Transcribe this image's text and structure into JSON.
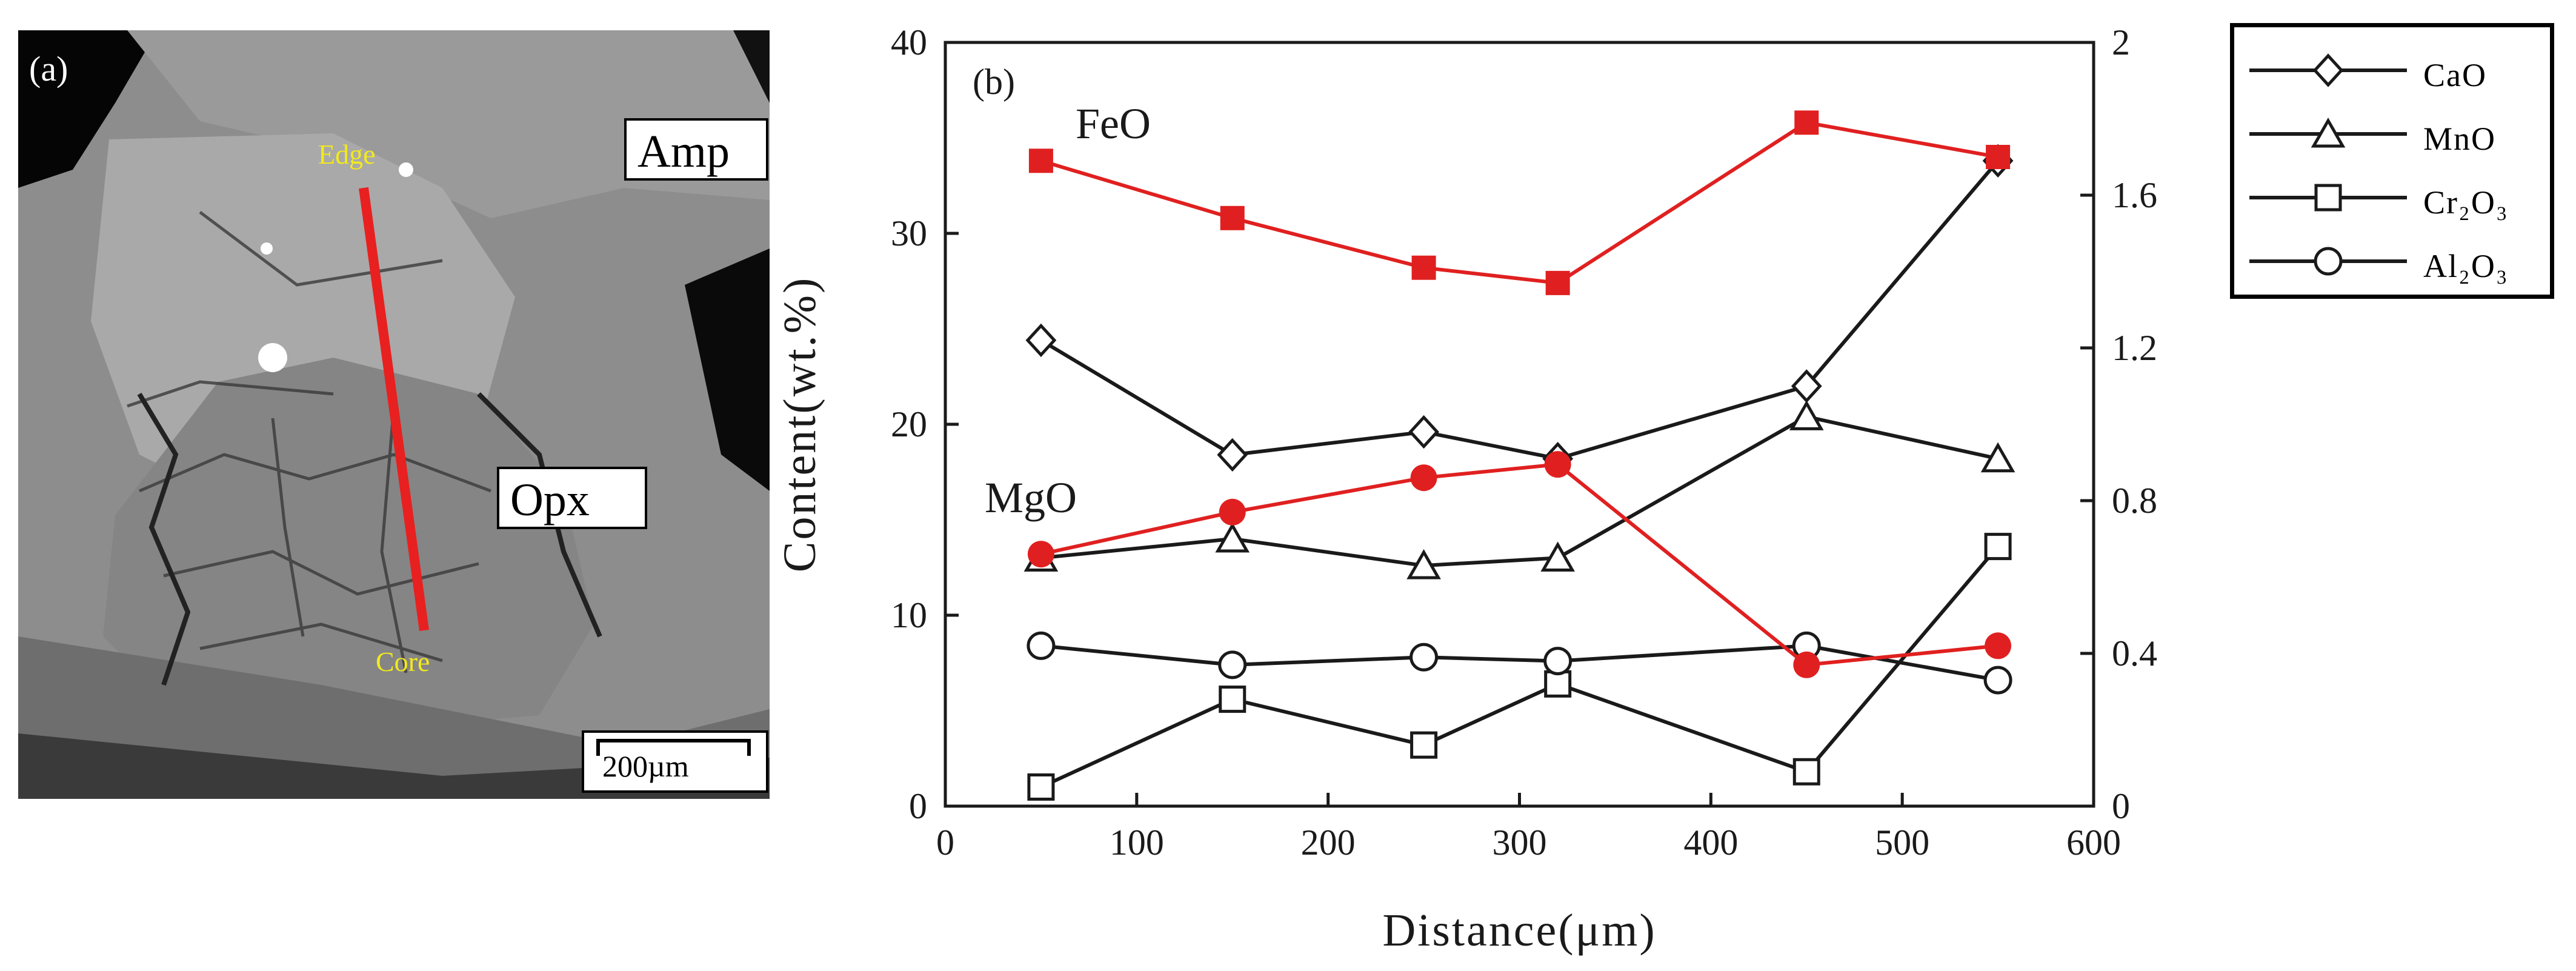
{
  "panel_a": {
    "panel_label": "(a)",
    "mineral_amp": "Amp",
    "mineral_opx": "Opx",
    "edge_label": "Edge",
    "core_label": "Core",
    "scale_bar": "200µm"
  },
  "colors": {
    "red": "#e02020",
    "black": "#1a1a1a"
  },
  "chart_data": {
    "type": "line",
    "panel_label": "(b)",
    "xlabel": "Distance(μm)",
    "ylabel": "Content(wt.%)",
    "xlim": [
      0,
      600
    ],
    "ylim_left": [
      0,
      40
    ],
    "ylim_right": [
      0,
      2
    ],
    "x_ticks": [
      "0",
      "100",
      "200",
      "300",
      "400",
      "500",
      "600"
    ],
    "y_left_ticks": [
      "0",
      "10",
      "20",
      "30",
      "40"
    ],
    "y_right_ticks": [
      "0",
      "0.4",
      "0.8",
      "1.2",
      "1.6",
      "2"
    ],
    "x": [
      50,
      150,
      250,
      320,
      450,
      550
    ],
    "series": [
      {
        "name": "FeO",
        "axis": "left",
        "marker": "filled-square",
        "color": "#e02020",
        "values": [
          33.8,
          30.8,
          28.2,
          27.4,
          35.8,
          34.0
        ]
      },
      {
        "name": "MgO",
        "axis": "left",
        "marker": "filled-circle",
        "color": "#e02020",
        "values": [
          13.2,
          15.4,
          17.2,
          17.9,
          7.4,
          8.4
        ]
      },
      {
        "name": "CaO",
        "axis": "right",
        "marker": "open-diamond",
        "color": "#1a1a1a",
        "values": [
          1.22,
          0.92,
          0.98,
          0.91,
          1.1,
          1.69
        ]
      },
      {
        "name": "MnO",
        "axis": "right",
        "marker": "open-triangle",
        "color": "#1a1a1a",
        "values": [
          0.65,
          0.7,
          0.63,
          0.65,
          1.02,
          0.91
        ]
      },
      {
        "name": "Cr2O3",
        "axis": "right",
        "marker": "open-square",
        "color": "#1a1a1a",
        "values": [
          0.05,
          0.28,
          0.16,
          0.32,
          0.09,
          0.68
        ]
      },
      {
        "name": "Al2O3",
        "axis": "right",
        "marker": "open-circle",
        "color": "#1a1a1a",
        "values": [
          0.42,
          0.37,
          0.39,
          0.38,
          0.42,
          0.33
        ]
      }
    ],
    "series_labels": {
      "FeO": "FeO",
      "MgO": "MgO"
    },
    "legend": {
      "position": "top-right-outside",
      "items": [
        {
          "marker": "open-diamond",
          "text": "CaO"
        },
        {
          "marker": "open-triangle",
          "text": "MnO"
        },
        {
          "marker": "open-square",
          "text": "Cr₂O₃"
        },
        {
          "marker": "open-circle",
          "text": "Al₂O₃"
        }
      ]
    }
  }
}
